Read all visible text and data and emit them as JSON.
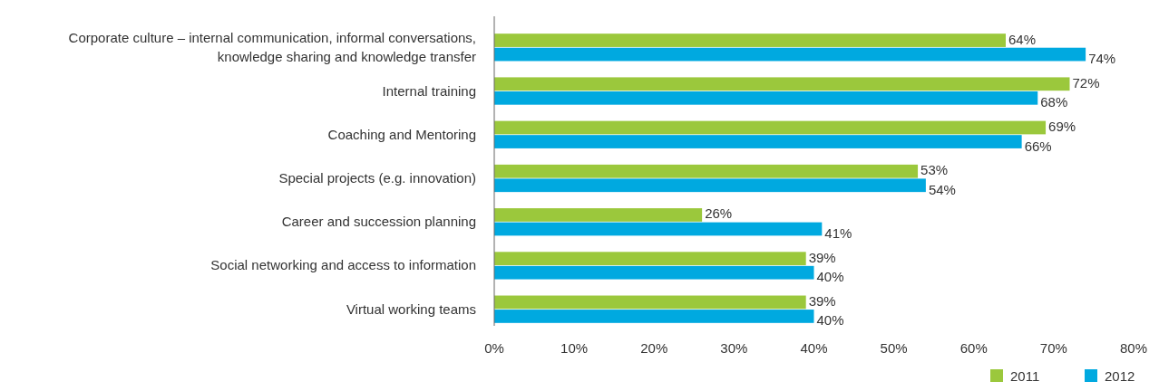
{
  "chart_data": {
    "type": "bar",
    "orientation": "horizontal",
    "categories": [
      "Corporate culture – internal communication, informal conversations, knowledge sharing and knowledge transfer",
      "Internal training",
      "Coaching and Mentoring",
      "Special projects (e.g. innovation)",
      "Career and succession planning",
      "Social networking and access to information",
      "Virtual working teams"
    ],
    "series": [
      {
        "name": "2011",
        "color": "#9bc83c",
        "values": [
          64,
          72,
          69,
          53,
          26,
          39,
          39
        ],
        "value_labels": [
          "64%",
          "72%",
          "69%",
          "53%",
          "26%",
          "39%",
          "39%"
        ]
      },
      {
        "name": "2012",
        "color": "#00a9e0",
        "values": [
          74,
          68,
          66,
          54,
          41,
          40,
          40
        ],
        "value_labels": [
          "74%",
          "68%",
          "66%",
          "54%",
          "41%",
          "40%",
          "40%"
        ]
      }
    ],
    "xlim": [
      0,
      80
    ],
    "xticks": [
      {
        "value": 0,
        "label": "0%"
      },
      {
        "value": 10,
        "label": "10%"
      },
      {
        "value": 20,
        "label": "20%"
      },
      {
        "value": 30,
        "label": "30%"
      },
      {
        "value": 40,
        "label": "40%"
      },
      {
        "value": 50,
        "label": "50%"
      },
      {
        "value": 60,
        "label": "60%"
      },
      {
        "value": 70,
        "label": "70%"
      },
      {
        "value": 80,
        "label": "80%"
      }
    ],
    "legend": "bottom right"
  }
}
